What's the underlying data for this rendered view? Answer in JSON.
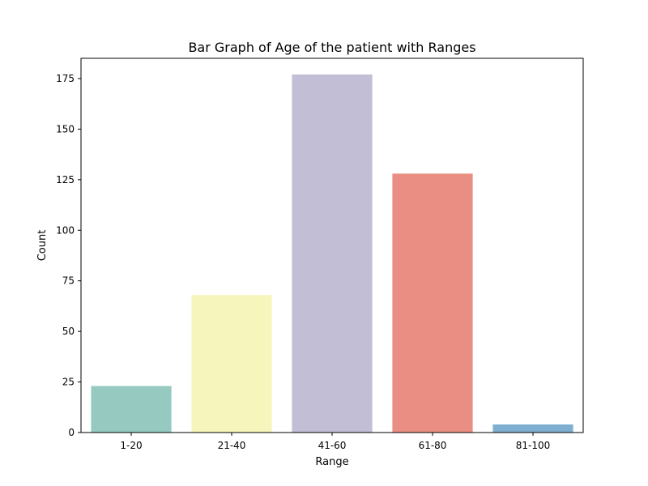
{
  "chart_data": {
    "type": "bar",
    "title": "Bar Graph of Age of the patient with Ranges",
    "xlabel": "Range",
    "ylabel": "Count",
    "categories": [
      "1-20",
      "21-40",
      "41-60",
      "61-80",
      "81-100"
    ],
    "values": [
      23,
      68,
      177,
      128,
      4
    ],
    "colors": [
      "#96cac1",
      "#f6f6bc",
      "#c1bed6",
      "#ea8e83",
      "#7fafd0"
    ],
    "ylim": [
      0,
      185
    ],
    "yticks": [
      0,
      25,
      50,
      75,
      100,
      125,
      150,
      175
    ],
    "grid": false,
    "legend": false
  }
}
